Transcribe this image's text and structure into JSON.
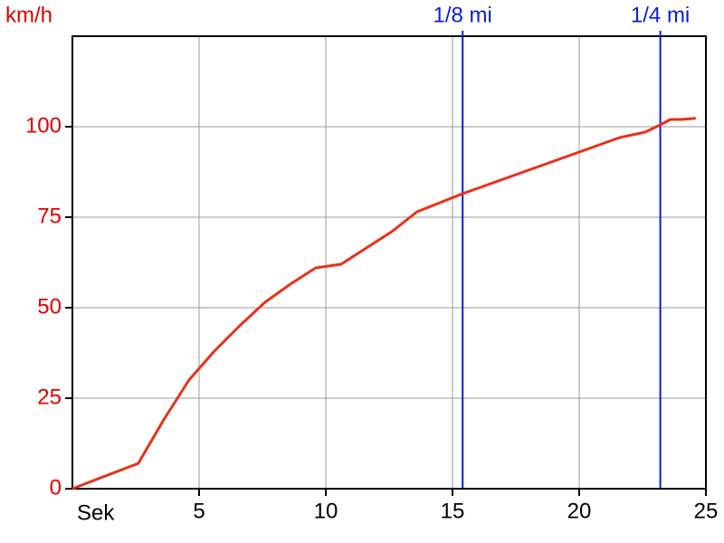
{
  "chart_data": {
    "type": "line",
    "y_label": "km/h",
    "x_label": "Sek",
    "x": [
      0,
      2.6,
      3.6,
      4.6,
      5.6,
      6.6,
      7.6,
      8.6,
      9.6,
      10.6,
      11.6,
      12.6,
      13.6,
      15.4,
      17.6,
      20,
      21.6,
      22.6,
      23.2,
      23.6,
      24,
      24.6
    ],
    "values": [
      0,
      7,
      19,
      30,
      38,
      45,
      51.5,
      56.5,
      61,
      62,
      66.5,
      71,
      76.5,
      81.5,
      87,
      93,
      97,
      98.5,
      100.5,
      102,
      102,
      102.3
    ],
    "color": "#e8311a",
    "xlim": [
      0,
      25
    ],
    "xticks": [
      5,
      10,
      15,
      20,
      25
    ],
    "ylim": [
      0,
      125
    ],
    "yticks": [
      0,
      25,
      50,
      75,
      100
    ],
    "grid": true,
    "markers": [
      {
        "label": "1/8 mi",
        "x": 15.4
      },
      {
        "label": "1/4 mi",
        "x": 23.2
      }
    ],
    "marker_color": "#0a1ed2",
    "y_tick_color": "#e00000"
  }
}
